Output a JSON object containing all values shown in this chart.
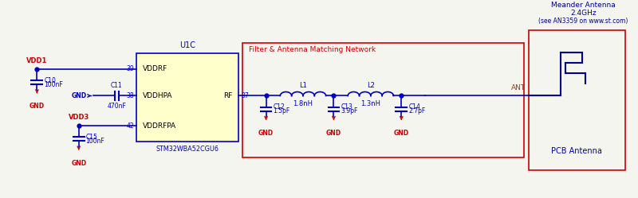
{
  "bg_color": "#f5f5f0",
  "blue": "#0000bb",
  "dark_blue": "#00008B",
  "red": "#cc0000",
  "brown": "#8B4513",
  "yellow_fill": "#ffffcc",
  "ic_label": "U1C",
  "ic_name": "STM32WBA52CGU6",
  "filter_box_label": "Filter & Antenna Matching Network",
  "L1_label": "L1",
  "L1_val": "1.8nH",
  "L2_label": "L2",
  "L2_val": "1.3nH",
  "C10_lbl": "C10",
  "C10_val": "100nF",
  "C11_lbl": "C11",
  "C11_val": "470nF",
  "C15_lbl": "C15",
  "C15_val": "100nF",
  "C12_lbl": "C12",
  "C12_val": "1.5pF",
  "C13_lbl": "C13",
  "C13_val": "3.9pF",
  "C14_lbl": "C14",
  "C14_val": "2.7pF",
  "vdd1_label": "VDD1",
  "vdd3_label": "VDD3",
  "gnd_label": "GND",
  "ant_label": "ANT",
  "pcb_label": "PCB Antenna",
  "meander_l1": "Meander Antenna",
  "meander_l2": "2.4GHz",
  "meander_l3": "(see AN3359 on www.st.com)",
  "pin39": "39",
  "pin38": "38",
  "pin42": "42",
  "pin37": "37",
  "vddrf": "VDDRF",
  "vddhpa": "VDDHPA",
  "vddrfpa": "VDDRFPA",
  "rf": "RF"
}
